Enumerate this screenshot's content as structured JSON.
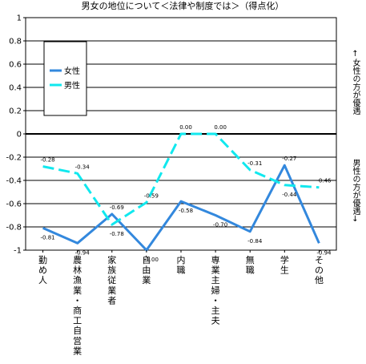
{
  "chart_data": {
    "type": "line",
    "title": "男女の地位について＜法律や制度では＞（得点化）",
    "categories": [
      "勤め人",
      "農林漁業・商工自営業",
      "家族従業者",
      "自由業",
      "内職",
      "専業主婦・主夫",
      "無職",
      "学生",
      "その他"
    ],
    "ylim": [
      -1,
      1
    ],
    "yticks": [
      1,
      0.8,
      0.6,
      0.4,
      0.2,
      0,
      -0.2,
      -0.4,
      -0.6,
      -0.8,
      -1
    ],
    "ytick_labels": [
      "1",
      "0.8",
      "0.6",
      "0.4",
      "0.2",
      "0",
      "-0.2",
      "-0.4",
      "-0.6",
      "-0.8",
      "-1"
    ],
    "grid": true,
    "legend_position": "top-left",
    "series": [
      {
        "name": "女性",
        "color": "#3388dd",
        "dash": "solid",
        "values": [
          -0.81,
          -0.94,
          -0.69,
          -1.0,
          -0.58,
          -0.7,
          -0.84,
          -0.27,
          -0.94
        ],
        "labels": [
          "-0.81",
          "-0.94",
          "-0.69",
          "-1.00",
          "-0.58",
          "-0.70",
          "-0.84",
          "-0.27",
          "-0.94"
        ]
      },
      {
        "name": "男性",
        "color": "#11e8ee",
        "dash": "dashed",
        "values": [
          -0.28,
          -0.34,
          -0.78,
          -0.59,
          0.0,
          0.0,
          -0.31,
          -0.44,
          -0.46
        ],
        "labels": [
          "-0.28",
          "-0.34",
          "-0.78",
          "-0.59",
          "0.00",
          "0.00",
          "-0.31",
          "-0.44",
          "-0.46"
        ]
      }
    ],
    "annotations": {
      "upper_right": "↑女性の方が優遇",
      "lower_right": "男性の方が優遇↓"
    }
  }
}
